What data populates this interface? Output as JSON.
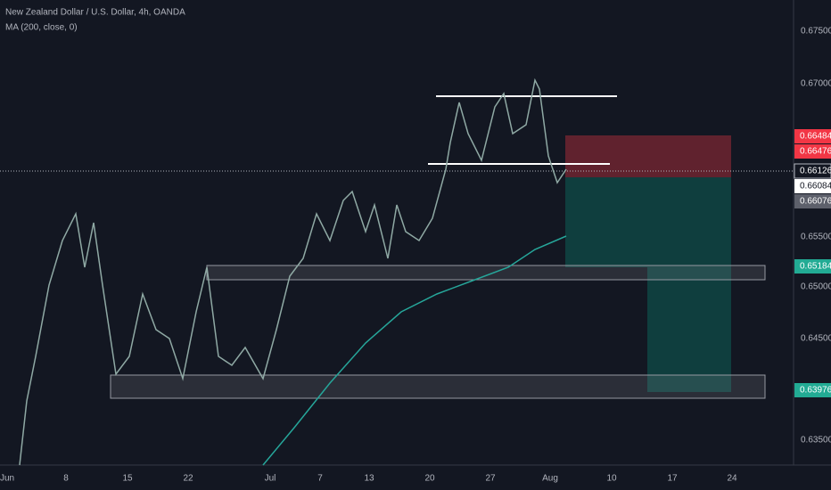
{
  "header": {
    "title": "New Zealand Dollar / U.S. Dollar, 4h, OANDA",
    "indicator": "MA (200, close, 0)"
  },
  "price_axis": {
    "labels": [
      "0.67500",
      "0.67000",
      "0.65500",
      "0.65000",
      "0.64500",
      "0.63500"
    ]
  },
  "price_tags": [
    "0.66484",
    "0.66476",
    "0.66126",
    "0.66084",
    "0.66076",
    "0.65184",
    "0.63976"
  ],
  "time_axis": {
    "labels": [
      "Jun",
      "8",
      "15",
      "22",
      "Jul",
      "7",
      "13",
      "20",
      "27",
      "Aug",
      "10",
      "17",
      "24"
    ]
  }
}
